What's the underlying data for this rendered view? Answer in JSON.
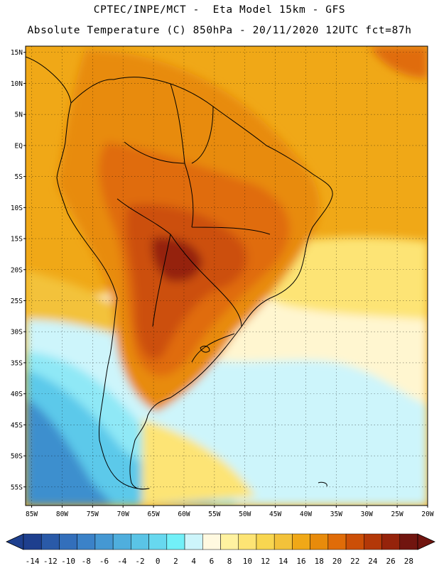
{
  "header": {
    "line1": "CPTEC/INPE/MCT -  Eta Model 15km - GFS",
    "line2": "Absolute Temperature (C) 850hPa - 20/11/2020 12UTC fct=87h"
  },
  "axes": {
    "lat_labels": [
      "15N",
      "10N",
      "5N",
      "EQ",
      "5S",
      "10S",
      "15S",
      "20S",
      "25S",
      "30S",
      "35S",
      "40S",
      "45S",
      "50S",
      "55S"
    ],
    "lon_labels": [
      "85W",
      "80W",
      "75W",
      "70W",
      "65W",
      "60W",
      "55W",
      "50W",
      "45W",
      "40W",
      "35W",
      "30W",
      "25W",
      "20W"
    ],
    "lat_range": [
      -58,
      16
    ],
    "lon_range": [
      -86,
      -20
    ]
  },
  "colorbar": {
    "unit": "C",
    "labels": [
      "-14",
      "-12",
      "-10",
      "-8",
      "-6",
      "-4",
      "-2",
      "0",
      "2",
      "4",
      "6",
      "8",
      "10",
      "12",
      "14",
      "16",
      "18",
      "20",
      "22",
      "24",
      "26",
      "28"
    ],
    "colors": [
      "#1e3f8e",
      "#2a5aa8",
      "#336fbb",
      "#3b82c8",
      "#4598d3",
      "#4faedd",
      "#5ac4e6",
      "#67d8ef",
      "#72f0f8",
      "#cdf5fb",
      "#fff9e0",
      "#fff2a0",
      "#fde474",
      "#f8d650",
      "#f3c23a",
      "#f0a817",
      "#e88b0b",
      "#e06c08",
      "#cc4f07",
      "#b33808",
      "#95230b",
      "#71150f"
    ]
  },
  "zones": [
    {
      "name": "cold",
      "color": "#3d8fce"
    },
    {
      "name": "cool",
      "color": "#5cc9ea"
    },
    {
      "name": "cyan",
      "color": "#8fe8f6"
    },
    {
      "name": "ice",
      "color": "#cdf5fb"
    },
    {
      "name": "cream",
      "color": "#fff6d0"
    },
    {
      "name": "yellow",
      "color": "#fde474"
    },
    {
      "name": "gold",
      "color": "#f3c23a"
    },
    {
      "name": "orange",
      "color": "#f0a817"
    },
    {
      "name": "warm",
      "color": "#e88b0b"
    },
    {
      "name": "hot",
      "color": "#e06c08"
    },
    {
      "name": "hotter",
      "color": "#cc4f07"
    },
    {
      "name": "hottest",
      "color": "#95230b"
    }
  ]
}
